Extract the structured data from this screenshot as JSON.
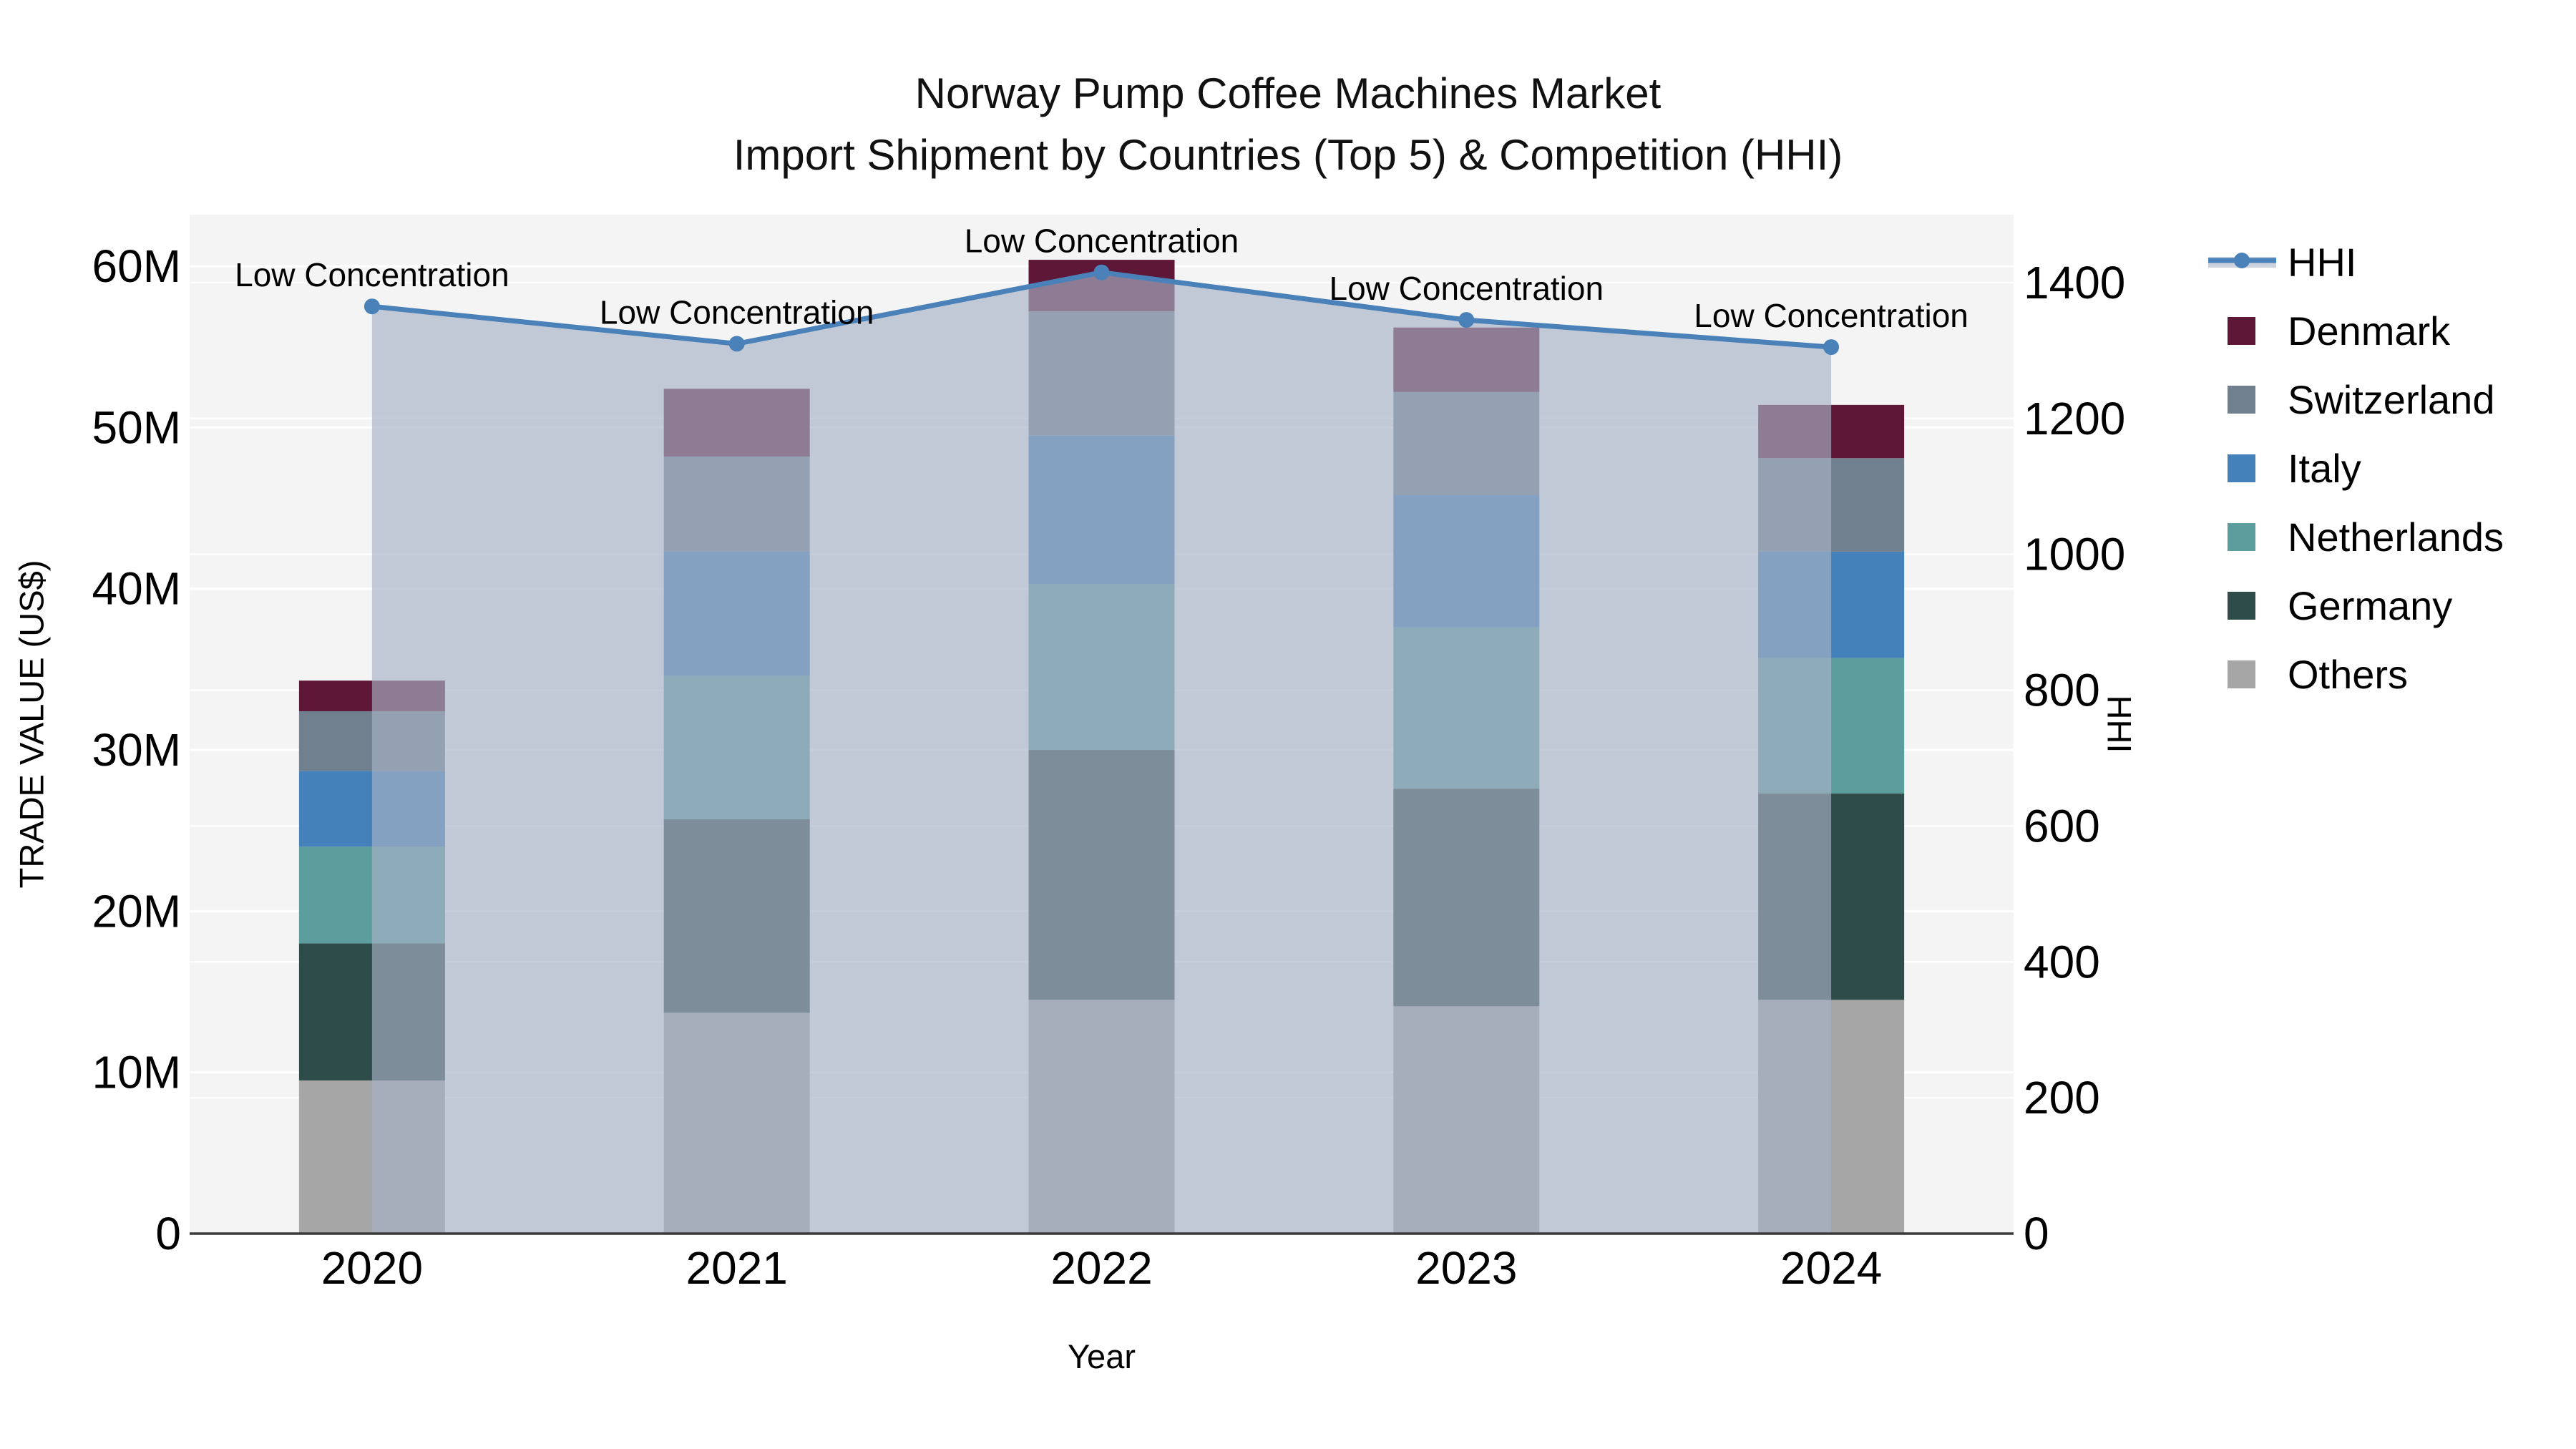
{
  "title": {
    "line1": "Norway Pump Coffee Machines Market",
    "line2": "Import Shipment by Countries (Top 5) & Competition (HHI)"
  },
  "colors": {
    "plot_bg": "#f4f4f4",
    "grid": "#ffffff",
    "axis_line": "#3a3a3a",
    "text": "#000000"
  },
  "chart_data": {
    "type": "stacked-bar+line",
    "title": "Norway Pump Coffee Machines Market — Import Shipment by Countries (Top 5) & Competition (HHI)",
    "categories": [
      "2020",
      "2021",
      "2022",
      "2023",
      "2024"
    ],
    "xlabel": "Year",
    "ylabel_left": "TRADE VALUE (US$)",
    "ylabel_right": "HHI",
    "ylim_left_musd": [
      0,
      63.2
    ],
    "ylim_right": [
      0,
      1500
    ],
    "grid": true,
    "legend_position": "right-outside",
    "yticks_left": [
      {
        "value": 0,
        "label": "0"
      },
      {
        "value": 10,
        "label": "10M"
      },
      {
        "value": 20,
        "label": "20M"
      },
      {
        "value": 30,
        "label": "30M"
      },
      {
        "value": 40,
        "label": "40M"
      },
      {
        "value": 50,
        "label": "50M"
      },
      {
        "value": 60,
        "label": "60M"
      }
    ],
    "yticks_right": [
      {
        "value": 0,
        "label": "0"
      },
      {
        "value": 200,
        "label": "200"
      },
      {
        "value": 400,
        "label": "400"
      },
      {
        "value": 600,
        "label": "600"
      },
      {
        "value": 800,
        "label": "800"
      },
      {
        "value": 1000,
        "label": "1000"
      },
      {
        "value": 1200,
        "label": "1200"
      },
      {
        "value": 1400,
        "label": "1400"
      }
    ],
    "series": [
      {
        "name": "Others",
        "color": "#a6a6a6",
        "values_musd": [
          9.5,
          13.7,
          14.5,
          14.1,
          14.5
        ]
      },
      {
        "name": "Germany",
        "color": "#2e4c49",
        "values_musd": [
          8.5,
          12.0,
          15.5,
          13.5,
          12.8
        ]
      },
      {
        "name": "Netherlands",
        "color": "#5c9e9d",
        "values_musd": [
          6.0,
          8.9,
          10.3,
          10.0,
          8.4
        ]
      },
      {
        "name": "Italy",
        "color": "#4481bb",
        "values_musd": [
          4.7,
          7.7,
          9.2,
          8.2,
          6.6
        ]
      },
      {
        "name": "Switzerland",
        "color": "#70808f",
        "values_musd": [
          3.7,
          5.9,
          7.7,
          6.4,
          5.8
        ]
      },
      {
        "name": "Denmark",
        "color": "#5f1737",
        "values_musd": [
          1.9,
          4.2,
          3.2,
          4.0,
          3.3
        ]
      }
    ],
    "totals_musd": [
      34.3,
      52.4,
      60.4,
      56.2,
      51.4
    ],
    "hhi_line": {
      "name": "HHI",
      "color": "#4a81b9",
      "area_fill": "rgba(168,178,198,0.65)",
      "legend_band_color": "#ccd2dd",
      "values": [
        1365,
        1310,
        1415,
        1345,
        1305
      ],
      "annotations": [
        "Low Concentration",
        "Low Concentration",
        "Low Concentration",
        "Low Concentration",
        "Low Concentration"
      ]
    },
    "legend_items": [
      "HHI",
      "Denmark",
      "Switzerland",
      "Italy",
      "Netherlands",
      "Germany",
      "Others"
    ]
  }
}
